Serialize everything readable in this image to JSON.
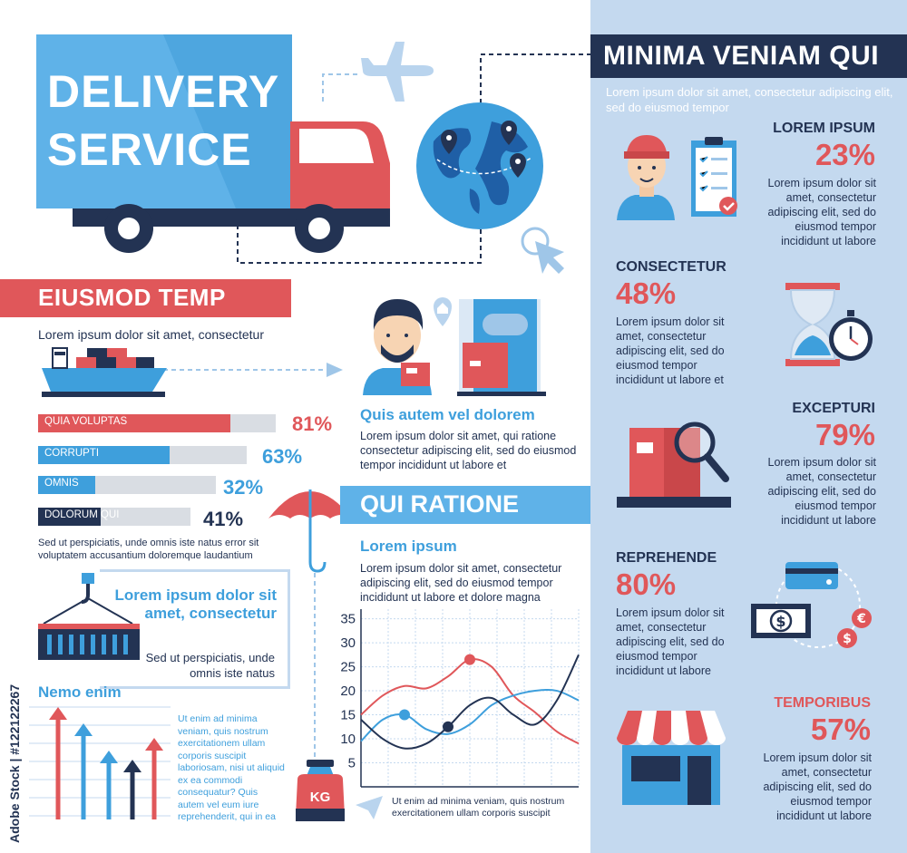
{
  "hero": {
    "title_line1": "DELIVERY",
    "title_line2": "SERVICE"
  },
  "panel": {
    "title": "MINIMA VENIAM QUI",
    "intro": "Lorem ipsum dolor sit amet, consectetur adipiscing elit, sed do eiusmod tempor",
    "stats": [
      {
        "heading": "LOREM IPSUM",
        "percent": "23%",
        "text": "Lorem ipsum dolor sit amet, consectetur adipiscing elit, sed do eiusmod tempor incididunt ut labore"
      },
      {
        "heading": "CONSECTETUR",
        "percent": "48%",
        "text": "Lorem ipsum dolor sit amet, consectetur adipiscing elit, sed do eiusmod tempor incididunt ut labore et"
      },
      {
        "heading": "EXCEPTURI",
        "percent": "79%",
        "text": "Lorem ipsum dolor sit amet, consectetur adipiscing elit, sed do eiusmod tempor incididunt ut labore"
      },
      {
        "heading": "REPREHENDE",
        "percent": "80%",
        "text": "Lorem ipsum dolor sit amet, consectetur adipiscing elit, sed do eiusmod tempor incididunt ut labore"
      },
      {
        "heading": "TEMPORIBUS",
        "percent": "57%",
        "text": "Lorem ipsum dolor sit amet, consectetur adipiscing elit, sed do eiusmod tempor incididunt ut labore"
      }
    ]
  },
  "eiusmod": {
    "title": "EIUSMOD TEMP",
    "subtitle": "Lorem ipsum dolor sit amet, consectetur",
    "bars": [
      {
        "label": "QUIA VOLUPTAS",
        "value": 81,
        "percent": "81%",
        "color": "#e0575a"
      },
      {
        "label": "CORRUPTI",
        "value": 63,
        "percent": "63%",
        "color": "#3e9fdc"
      },
      {
        "label": "OMNIS",
        "value": 32,
        "percent": "32%",
        "color": "#3e9fdc"
      },
      {
        "label": "DOLORUM QUI",
        "value": 41,
        "percent": "41%",
        "color": "#233353"
      }
    ],
    "note": "Sed ut perspiciatis, unde omnis iste natus error sit voluptatem accusantium doloremque laudantium"
  },
  "quis": {
    "title": "Quis autem vel dolorem",
    "text": "Lorem ipsum dolor sit amet, qui ratione consectetur adipiscing elit, sed do eiusmod tempor incididunt ut labore et"
  },
  "crane_box": {
    "title": "Lorem ipsum dolor sit amet, consectetur",
    "text": "Sed ut perspiciatis, unde omnis iste natus"
  },
  "nemo": {
    "title": "Nemo enim",
    "text": "Ut enim ad minima veniam, quis nostrum exercitationem ullam corporis suscipit laboriosam, nisi ut aliquid ex ea commodi consequatur? Quis autem vel eum iure reprehenderit, qui in ea"
  },
  "ratione": {
    "title": "QUI RATIONE",
    "subtitle": "Lorem ipsum",
    "text": "Lorem ipsum dolor sit amet, consectetur adipiscing elit, sed do eiusmod tempor incididunt ut labore et dolore magna",
    "footnote": "Ut enim ad minima veniam, quis nostrum exercitationem ullam corporis suscipit"
  },
  "weight": {
    "label": "KG"
  },
  "watermark": {
    "text": "Adobe Stock | #122122267"
  },
  "chart_data": {
    "type": "line",
    "ylim": [
      0,
      37
    ],
    "yticks": [
      5,
      10,
      15,
      20,
      25,
      30,
      35
    ],
    "x": [
      0,
      1,
      2,
      3,
      4,
      5,
      6,
      7,
      8,
      9,
      10
    ],
    "series": [
      {
        "color": "#e0575a",
        "values": [
          15,
          19,
          21,
          20.5,
          23,
          26.5,
          25,
          19,
          15.5,
          11.5,
          9
        ]
      },
      {
        "color": "#3e9fdc",
        "values": [
          9.5,
          14,
          15,
          12,
          11,
          13,
          17,
          19,
          20,
          20,
          18
        ]
      },
      {
        "color": "#233353",
        "values": [
          14,
          10,
          8,
          9,
          12.5,
          17,
          18.5,
          15,
          13,
          18,
          27.5
        ]
      }
    ],
    "markers": [
      {
        "series": 0,
        "index": 5
      },
      {
        "series": 1,
        "index": 2
      },
      {
        "series": 2,
        "index": 4
      }
    ],
    "grid": true
  }
}
